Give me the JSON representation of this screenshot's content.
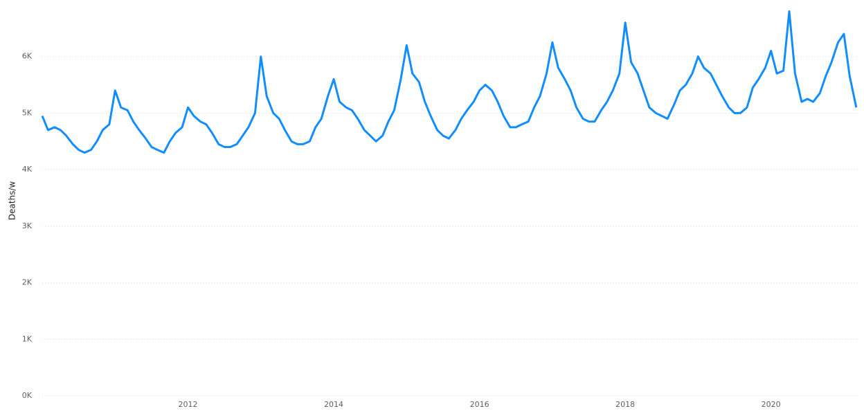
{
  "chart_data": {
    "type": "line",
    "y_label": "Deaths/w",
    "x": [
      2010.0,
      2010.08,
      2010.17,
      2010.25,
      2010.33,
      2010.42,
      2010.5,
      2010.58,
      2010.67,
      2010.75,
      2010.83,
      2010.92,
      2011.0,
      2011.08,
      2011.17,
      2011.25,
      2011.33,
      2011.42,
      2011.5,
      2011.58,
      2011.67,
      2011.75,
      2011.83,
      2011.92,
      2012.0,
      2012.08,
      2012.17,
      2012.25,
      2012.33,
      2012.42,
      2012.5,
      2012.58,
      2012.67,
      2012.75,
      2012.83,
      2012.92,
      2013.0,
      2013.08,
      2013.17,
      2013.25,
      2013.33,
      2013.42,
      2013.5,
      2013.58,
      2013.67,
      2013.75,
      2013.83,
      2013.92,
      2014.0,
      2014.08,
      2014.17,
      2014.25,
      2014.33,
      2014.42,
      2014.5,
      2014.58,
      2014.67,
      2014.75,
      2014.83,
      2014.92,
      2015.0,
      2015.08,
      2015.17,
      2015.25,
      2015.33,
      2015.42,
      2015.5,
      2015.58,
      2015.67,
      2015.75,
      2015.83,
      2015.92,
      2016.0,
      2016.08,
      2016.17,
      2016.25,
      2016.33,
      2016.42,
      2016.5,
      2016.58,
      2016.67,
      2016.75,
      2016.83,
      2016.92,
      2017.0,
      2017.08,
      2017.17,
      2017.25,
      2017.33,
      2017.42,
      2017.5,
      2017.58,
      2017.67,
      2017.75,
      2017.83,
      2017.92,
      2018.0,
      2018.08,
      2018.17,
      2018.25,
      2018.33,
      2018.42,
      2018.5,
      2018.58,
      2018.67,
      2018.75,
      2018.83,
      2018.92,
      2019.0,
      2019.08,
      2019.17,
      2019.25,
      2019.33,
      2019.42,
      2019.5,
      2019.58,
      2019.67,
      2019.75,
      2019.83,
      2019.92,
      2020.0,
      2020.08,
      2020.17,
      2020.25,
      2020.33,
      2020.42,
      2020.5,
      2020.58,
      2020.67,
      2020.75,
      2020.83,
      2020.92,
      2021.0,
      2021.08,
      2021.17
    ],
    "series": [
      {
        "name": "Deaths/w",
        "color": "#118DFF",
        "values": [
          4950,
          4700,
          4750,
          4700,
          4600,
          4450,
          4350,
          4300,
          4350,
          4500,
          4700,
          4800,
          5400,
          5100,
          5050,
          4850,
          4700,
          4550,
          4400,
          4350,
          4300,
          4500,
          4650,
          4750,
          5100,
          4950,
          4850,
          4800,
          4650,
          4450,
          4400,
          4400,
          4450,
          4600,
          4750,
          5000,
          6000,
          5300,
          5000,
          4900,
          4700,
          4500,
          4450,
          4450,
          4500,
          4750,
          4900,
          5300,
          5600,
          5200,
          5100,
          5050,
          4900,
          4700,
          4600,
          4500,
          4600,
          4850,
          5050,
          5600,
          6200,
          5700,
          5550,
          5200,
          4950,
          4700,
          4600,
          4550,
          4700,
          4900,
          5050,
          5200,
          5400,
          5500,
          5400,
          5200,
          4950,
          4750,
          4750,
          4800,
          4850,
          5100,
          5300,
          5700,
          6250,
          5800,
          5600,
          5400,
          5100,
          4900,
          4850,
          4850,
          5050,
          5200,
          5400,
          5700,
          6600,
          5900,
          5700,
          5400,
          5100,
          5000,
          4950,
          4900,
          5150,
          5400,
          5500,
          5700,
          6000,
          5800,
          5700,
          5500,
          5300,
          5100,
          5000,
          5000,
          5100,
          5450,
          5600,
          5800,
          6100,
          5700,
          5750,
          6800,
          5700,
          5200,
          5250,
          5200,
          5350,
          5650,
          5900,
          6250,
          6400,
          5650,
          5100
        ]
      }
    ],
    "xlim": [
      2010,
      2021.2
    ],
    "xticks": [
      2012,
      2014,
      2016,
      2018,
      2020
    ],
    "ylim": [
      0,
      7000
    ],
    "yticks": [
      {
        "value": 0,
        "label": "0K"
      },
      {
        "value": 1000,
        "label": "1K"
      },
      {
        "value": 2000,
        "label": "2K"
      },
      {
        "value": 3000,
        "label": "3K"
      },
      {
        "value": 4000,
        "label": "4K"
      },
      {
        "value": 5000,
        "label": "5K"
      },
      {
        "value": 6000,
        "label": "6K"
      }
    ],
    "grid": true
  }
}
